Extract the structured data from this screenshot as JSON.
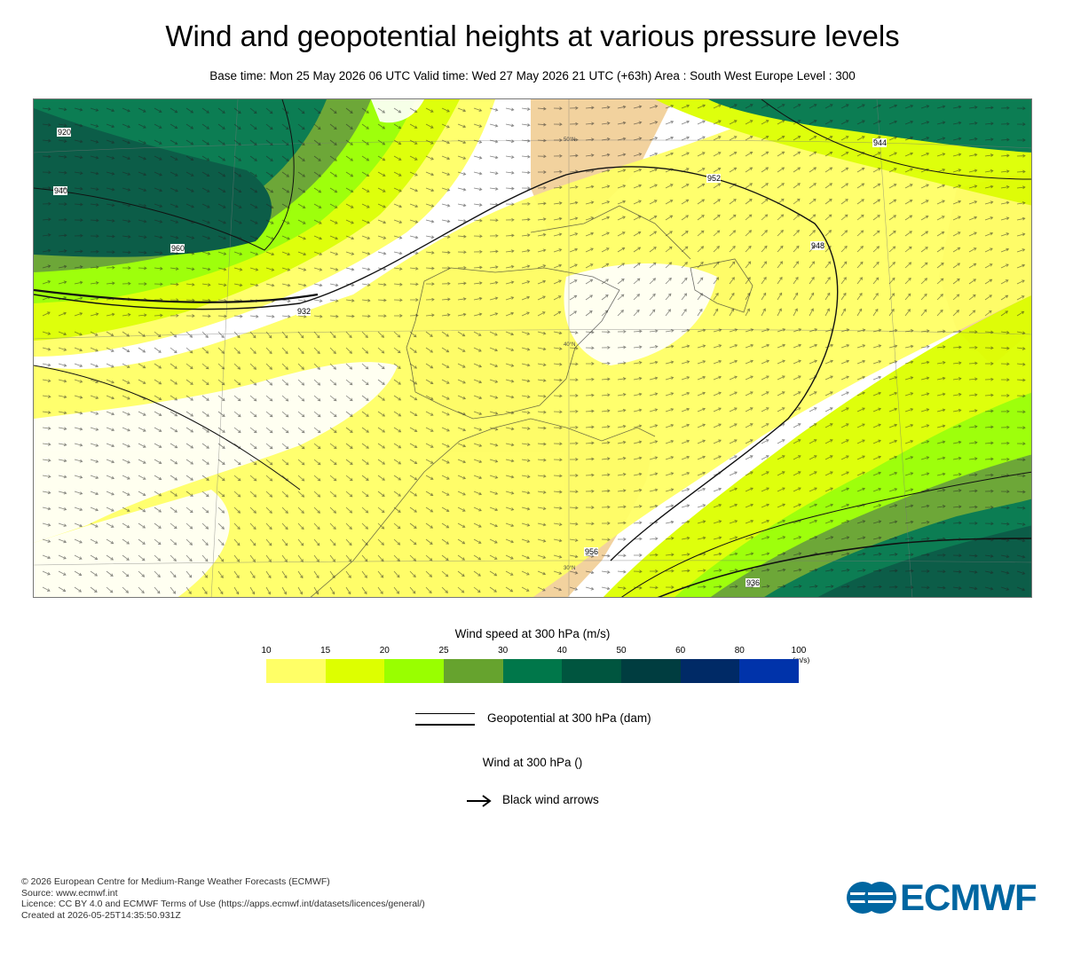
{
  "header": {
    "title": "Wind and geopotential heights at various pressure levels",
    "subtitle": "Base time: Mon 25 May 2026 06 UTC Valid time: Wed 27 May 2026 21 UTC (+63h) Area : South West Europe Level : 300"
  },
  "map": {
    "area": "South West Europe",
    "level": "300",
    "contour_labels": [
      "920",
      "940",
      "960",
      "932",
      "952",
      "944",
      "948",
      "956",
      "936"
    ],
    "grid_labels": [
      "50°N",
      "40°N",
      "30°N"
    ]
  },
  "legend": {
    "colorbar_title": "Wind speed at 300 hPa (m/s)",
    "ticks": [
      "10",
      "15",
      "20",
      "25",
      "30",
      "40",
      "50",
      "60",
      "80",
      "100"
    ],
    "unit": "(m/s)",
    "colors": [
      "#ffff66",
      "#ddff00",
      "#99ff00",
      "#66a32e",
      "#00774a",
      "#00553f",
      "#003d40",
      "#002a66",
      "#0033aa"
    ],
    "geopotential_label": "Geopotential at 300 hPa (dam)",
    "wind_label": "Wind at 300 hPa ()",
    "arrows_label": "Black wind arrows"
  },
  "credits": {
    "line1": "© 2026 European Centre for Medium-Range Weather Forecasts (ECMWF)",
    "line2": "Source: www.ecmwf.int",
    "line3": "Licence: CC BY 4.0 and ECMWF Terms of Use (https://apps.ecmwf.int/datasets/licences/general/)",
    "line4": "Created at 2026-05-25T14:35:50.931Z"
  },
  "logo": {
    "text": "ECMWF",
    "color": "#0066a1"
  }
}
